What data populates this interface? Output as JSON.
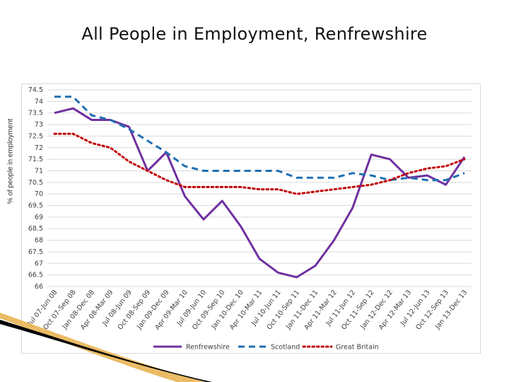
{
  "slide": {
    "title": "All People in Employment, Renfrewshire"
  },
  "chart_data": {
    "type": "line",
    "title": "",
    "xlabel": "",
    "ylabel": "% of people in employment",
    "ylim": [
      66,
      74.5
    ],
    "yticks": [
      66,
      66.5,
      67,
      67.5,
      68,
      68.5,
      69,
      69.5,
      70,
      70.5,
      71,
      71.5,
      72,
      72.5,
      73,
      73.5,
      74,
      74.5
    ],
    "grid": true,
    "legend": "bottom",
    "categories": [
      "Jul 07-Jun 08",
      "Oct 07-Sep 08",
      "Jan 08-Dec 08",
      "Apr 08-Mar 09",
      "Jul 08-Jun 09",
      "Oct 08-Sep 09",
      "Jan 09-Dec 09",
      "Apr 09-Mar 10",
      "Jul 09-Jun 10",
      "Oct 09-Sep 10",
      "Jan 10-Dec 10",
      "Apr 10-Mar 11",
      "Jul 10-Jun 11",
      "Oct 10-Sep 11",
      "Jan 11-Dec 11",
      "Apr 11-Mar 12",
      "Jul 11-Jun 12",
      "Oct 11-Sep 12",
      "Jan 12-Dec 12",
      "Apr 12-Mar 13",
      "Jul 12-Jun 13",
      "Oct 12-Sep 13",
      "Jan 13-Dec 13"
    ],
    "series": [
      {
        "name": "Renfrewshire",
        "color": "#7030a0",
        "dash": "solid",
        "values": [
          73.5,
          73.7,
          73.2,
          73.2,
          72.9,
          71.0,
          71.8,
          69.9,
          68.9,
          69.7,
          68.6,
          67.2,
          66.6,
          66.4,
          66.9,
          68.0,
          69.4,
          71.7,
          71.5,
          70.7,
          70.8,
          70.4,
          71.6
        ]
      },
      {
        "name": "Scotland",
        "color": "#1f6fb2",
        "dash": "dash",
        "values": [
          74.2,
          74.2,
          73.4,
          73.2,
          72.8,
          72.3,
          71.8,
          71.2,
          71.0,
          71.0,
          71.0,
          71.0,
          71.0,
          70.7,
          70.7,
          70.7,
          70.9,
          70.8,
          70.6,
          70.7,
          70.6,
          70.6,
          70.9
        ]
      },
      {
        "name": "Great Britain",
        "color": "#c00000",
        "dash": "dot",
        "values": [
          72.6,
          72.6,
          72.2,
          72.0,
          71.4,
          71.0,
          70.6,
          70.3,
          70.3,
          70.3,
          70.3,
          70.2,
          70.2,
          70.0,
          70.1,
          70.2,
          70.3,
          70.4,
          70.6,
          70.9,
          71.1,
          71.2,
          71.5
        ]
      }
    ]
  },
  "colors": {
    "grid": "#d9d9d9",
    "tick_text": "#404040",
    "swoosh_dark": "#000000",
    "swoosh_accent": "#e8b04a"
  }
}
